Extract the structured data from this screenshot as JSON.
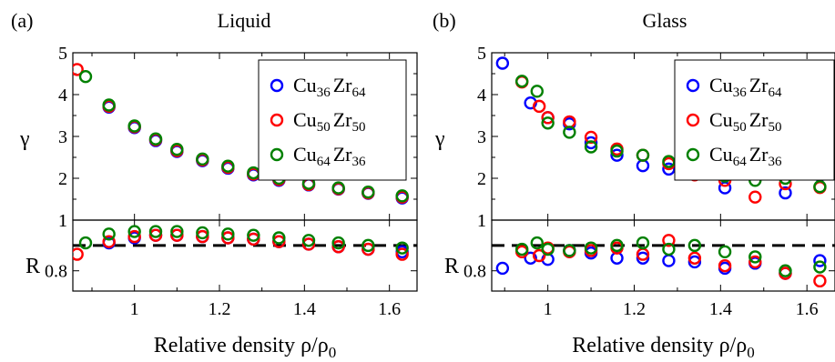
{
  "chart_data": [
    {
      "type": "scatter",
      "panel_label": "(a)",
      "title": "Liquid",
      "xlabel": "Relative density ρ/ρ",
      "xlabel_sub": "0",
      "xlim": [
        0.855,
        1.665
      ],
      "x_ticks": [
        1,
        1.2,
        1.4,
        1.6
      ],
      "x_tick_labels": [
        "1",
        "1.2",
        "1.4",
        "1.6"
      ],
      "top": {
        "ylabel": "γ",
        "ylim": [
          1,
          5
        ],
        "y_ticks": [
          1,
          2,
          3,
          4,
          5
        ],
        "y_tick_labels": [
          "1",
          "2",
          "3",
          "4",
          "5"
        ],
        "series": [
          {
            "name": "Cu36Zr64",
            "color": "#0000ff",
            "x": [
              0.94,
              1.0,
              1.05,
              1.1,
              1.16,
              1.22,
              1.28,
              1.34,
              1.41,
              1.48,
              1.55,
              1.63
            ],
            "y": [
              3.7,
              3.21,
              2.9,
              2.64,
              2.42,
              2.24,
              2.08,
              1.95,
              1.84,
              1.74,
              1.64,
              1.53
            ]
          },
          {
            "name": "Cu50Zr50",
            "color": "#ff0000",
            "x": [
              0.865,
              0.94,
              1.0,
              1.05,
              1.1,
              1.16,
              1.22,
              1.28,
              1.34,
              1.41,
              1.48,
              1.55,
              1.63
            ],
            "y": [
              4.6,
              3.72,
              3.23,
              2.92,
              2.66,
              2.44,
              2.26,
              2.1,
              1.97,
              1.85,
              1.75,
              1.65,
              1.55
            ]
          },
          {
            "name": "Cu64Zr36",
            "color": "#008000",
            "x": [
              0.885,
              0.94,
              1.0,
              1.05,
              1.1,
              1.16,
              1.22,
              1.28,
              1.34,
              1.41,
              1.48,
              1.55,
              1.63
            ],
            "y": [
              4.43,
              3.75,
              3.25,
              2.94,
              2.69,
              2.46,
              2.29,
              2.13,
              2.0,
              1.88,
              1.77,
              1.67,
              1.58
            ]
          }
        ]
      },
      "bottom": {
        "ylabel": "R",
        "ylim": [
          0.72,
          1.0
        ],
        "y_ticks": [
          0.8,
          1
        ],
        "y_tick_labels": [
          "0.8",
          "1"
        ],
        "reference_line": 0.9,
        "series": [
          {
            "name": "Cu36Zr64",
            "color": "#0000ff",
            "x": [
              0.94,
              1.0,
              1.05,
              1.1,
              1.16,
              1.22,
              1.28,
              1.34,
              1.41,
              1.48,
              1.55,
              1.63
            ],
            "y": [
              0.91,
              0.93,
              0.94,
              0.94,
              0.935,
              0.93,
              0.925,
              0.915,
              0.905,
              0.895,
              0.885,
              0.875
            ]
          },
          {
            "name": "Cu50Zr50",
            "color": "#ff0000",
            "x": [
              0.865,
              0.94,
              1.0,
              1.05,
              1.1,
              1.16,
              1.22,
              1.28,
              1.34,
              1.41,
              1.48,
              1.55,
              1.63
            ],
            "y": [
              0.865,
              0.915,
              0.935,
              0.94,
              0.94,
              0.935,
              0.93,
              0.925,
              0.915,
              0.905,
              0.895,
              0.885,
              0.865
            ]
          },
          {
            "name": "Cu64Zr36",
            "color": "#008000",
            "x": [
              0.885,
              0.94,
              1.0,
              1.05,
              1.1,
              1.16,
              1.22,
              1.28,
              1.34,
              1.41,
              1.48,
              1.55,
              1.63
            ],
            "y": [
              0.91,
              0.945,
              0.955,
              0.955,
              0.955,
              0.95,
              0.945,
              0.94,
              0.93,
              0.92,
              0.91,
              0.9,
              0.89
            ]
          }
        ]
      },
      "legend": {
        "placement": "top-right",
        "entries": [
          {
            "base1": "Cu",
            "sub1": "36",
            "base2": "Zr",
            "sub2": "64",
            "color": "#0000ff"
          },
          {
            "base1": "Cu",
            "sub1": "50",
            "base2": "Zr",
            "sub2": "50",
            "color": "#ff0000"
          },
          {
            "base1": "Cu",
            "sub1": "64",
            "base2": "Zr",
            "sub2": "36",
            "color": "#008000"
          }
        ]
      }
    },
    {
      "type": "scatter",
      "panel_label": "(b)",
      "title": "Glass",
      "xlabel": "Relative density ρ/ρ",
      "xlabel_sub": "0",
      "xlim": [
        0.87,
        1.665
      ],
      "x_ticks": [
        1,
        1.2,
        1.4,
        1.6
      ],
      "x_tick_labels": [
        "1",
        "1.2",
        "1.4",
        "1.6"
      ],
      "top": {
        "ylabel": "γ",
        "ylim": [
          1,
          5
        ],
        "y_ticks": [
          1,
          2,
          3,
          4,
          5
        ],
        "y_tick_labels": [
          "1",
          "2",
          "3",
          "4",
          "5"
        ],
        "series": [
          {
            "name": "Cu36Zr64",
            "color": "#0000ff",
            "x": [
              0.895,
              0.96,
              1.0,
              1.05,
              1.1,
              1.16,
              1.22,
              1.28,
              1.34,
              1.41,
              1.48,
              1.55,
              1.63
            ],
            "y": [
              4.75,
              3.8,
              3.45,
              3.3,
              2.85,
              2.55,
              2.3,
              2.22,
              2.15,
              1.77,
              2.12,
              1.65,
              2.07
            ]
          },
          {
            "name": "Cu50Zr50",
            "color": "#ff0000",
            "x": [
              0.94,
              0.98,
              1.0,
              1.05,
              1.1,
              1.16,
              1.22,
              1.28,
              1.34,
              1.41,
              1.48,
              1.55,
              1.63
            ],
            "y": [
              4.3,
              3.72,
              3.45,
              3.35,
              2.98,
              2.7,
              2.55,
              2.35,
              2.08,
              1.95,
              1.55,
              1.87,
              1.78
            ]
          },
          {
            "name": "Cu64Zr36",
            "color": "#008000",
            "x": [
              0.94,
              0.975,
              1.0,
              1.05,
              1.1,
              1.16,
              1.22,
              1.28,
              1.34,
              1.41,
              1.48,
              1.55,
              1.63
            ],
            "y": [
              4.32,
              4.08,
              3.32,
              3.1,
              2.75,
              2.65,
              2.55,
              2.4,
              2.2,
              2.05,
              1.95,
              2.0,
              1.8
            ]
          }
        ]
      },
      "bottom": {
        "ylabel": "R",
        "ylim": [
          0.72,
          1.0
        ],
        "y_ticks": [
          0.8,
          1
        ],
        "y_tick_labels": [
          "0.8",
          "1"
        ],
        "reference_line": 0.9,
        "series": [
          {
            "name": "Cu36Zr64",
            "color": "#0000ff",
            "x": [
              0.895,
              0.96,
              1.0,
              1.05,
              1.1,
              1.16,
              1.22,
              1.28,
              1.34,
              1.41,
              1.48,
              1.55,
              1.63
            ],
            "y": [
              0.81,
              0.85,
              0.845,
              0.88,
              0.87,
              0.85,
              0.85,
              0.84,
              0.835,
              0.81,
              0.83,
              0.79,
              0.84
            ]
          },
          {
            "name": "Cu50Zr50",
            "color": "#ff0000",
            "x": [
              0.94,
              0.98,
              1.0,
              1.05,
              1.1,
              1.16,
              1.22,
              1.28,
              1.34,
              1.41,
              1.48,
              1.55,
              1.63
            ],
            "y": [
              0.875,
              0.86,
              0.89,
              0.875,
              0.88,
              0.89,
              0.865,
              0.92,
              0.85,
              0.82,
              0.835,
              0.79,
              0.76
            ]
          },
          {
            "name": "Cu64Zr36",
            "color": "#008000",
            "x": [
              0.94,
              0.975,
              1.0,
              1.05,
              1.1,
              1.16,
              1.22,
              1.28,
              1.34,
              1.41,
              1.48,
              1.55,
              1.63
            ],
            "y": [
              0.885,
              0.91,
              0.885,
              0.88,
              0.89,
              0.9,
              0.91,
              0.885,
              0.9,
              0.875,
              0.855,
              0.8,
              0.815
            ]
          }
        ]
      },
      "legend": {
        "placement": "top-right",
        "entries": [
          {
            "base1": "Cu",
            "sub1": "36",
            "base2": "Zr",
            "sub2": "64",
            "color": "#0000ff"
          },
          {
            "base1": "Cu",
            "sub1": "50",
            "base2": "Zr",
            "sub2": "50",
            "color": "#ff0000"
          },
          {
            "base1": "Cu",
            "sub1": "64",
            "base2": "Zr",
            "sub2": "36",
            "color": "#008000"
          }
        ]
      }
    }
  ]
}
